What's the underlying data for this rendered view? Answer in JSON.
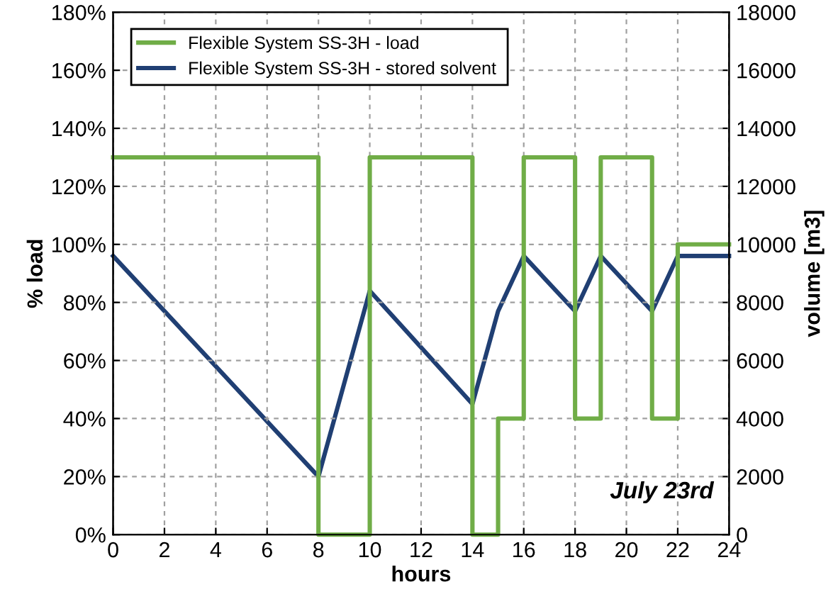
{
  "chart_data": {
    "type": "line",
    "xlabel": "hours",
    "ylabel": "% load",
    "y2label": "volume [m3]",
    "xlim": [
      0,
      24
    ],
    "xticks": [
      0,
      2,
      4,
      6,
      8,
      10,
      12,
      14,
      16,
      18,
      20,
      22,
      24
    ],
    "ylim": [
      0,
      180
    ],
    "yticks": [
      {
        "value": 0,
        "label": "0%"
      },
      {
        "value": 20,
        "label": "20%"
      },
      {
        "value": 40,
        "label": "40%"
      },
      {
        "value": 60,
        "label": "60%"
      },
      {
        "value": 80,
        "label": "80%"
      },
      {
        "value": 100,
        "label": "100%"
      },
      {
        "value": 120,
        "label": "120%"
      },
      {
        "value": 140,
        "label": "140%"
      },
      {
        "value": 160,
        "label": "160%"
      },
      {
        "value": 180,
        "label": "180%"
      }
    ],
    "y2lim": [
      0,
      18000
    ],
    "y2ticks": [
      0,
      2000,
      4000,
      6000,
      8000,
      10000,
      12000,
      14000,
      16000,
      18000
    ],
    "grid": true,
    "legend": "top left",
    "marker": "none",
    "line_style": "solid",
    "annotations": [
      "July 23rd"
    ],
    "series": [
      {
        "name": "Flexible System SS-3H - load",
        "type": "step",
        "color": "#70ad47",
        "x": [
          0,
          8,
          10,
          14,
          15,
          16,
          18,
          19,
          21,
          22,
          24
        ],
        "values": [
          130,
          0,
          130,
          0,
          40,
          130,
          40,
          130,
          40,
          100,
          100
        ]
      },
      {
        "name": "Flexible System SS-3H - stored solvent",
        "axis": "y2",
        "color": "#203f73",
        "x": [
          0,
          8,
          10,
          14,
          15,
          16,
          18,
          19,
          21,
          22,
          24
        ],
        "values": [
          9600,
          2000,
          8400,
          4500,
          7700,
          9600,
          7700,
          9600,
          7700,
          9600,
          9600
        ]
      }
    ]
  }
}
